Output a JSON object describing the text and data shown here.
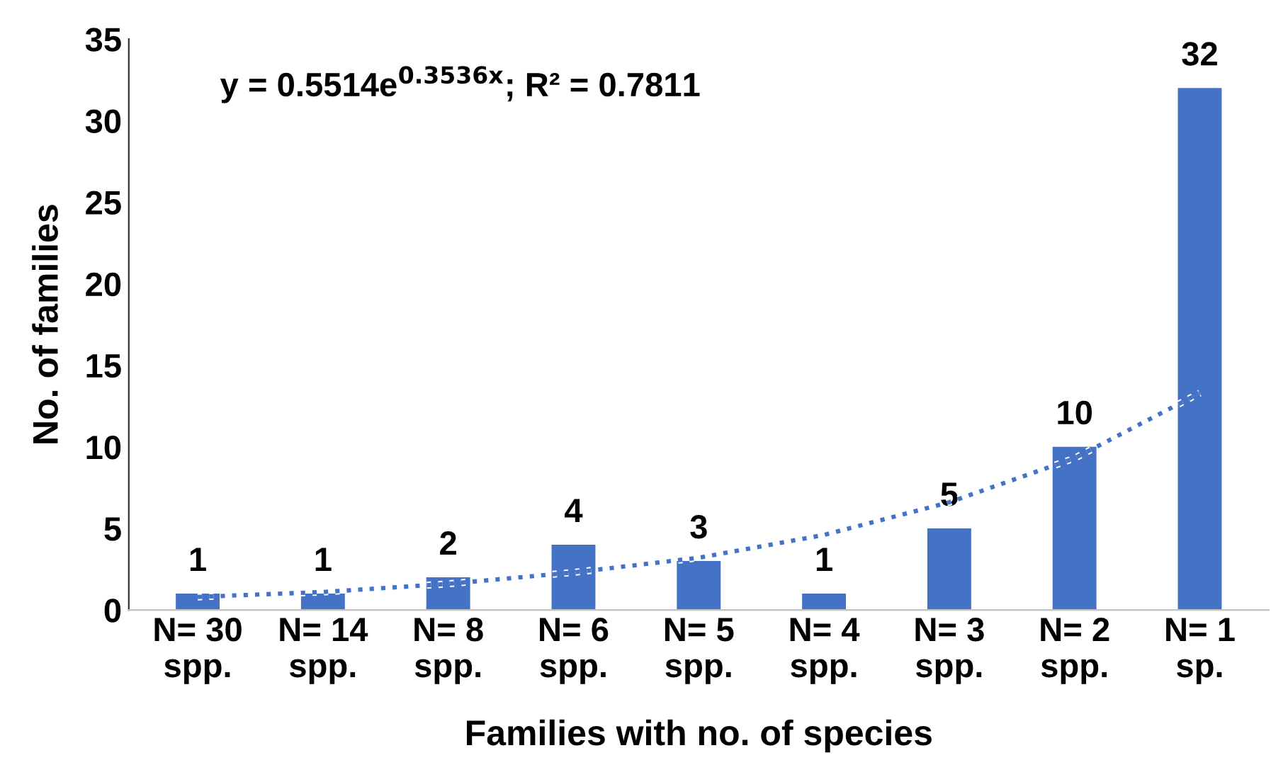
{
  "chart_data": {
    "type": "bar",
    "xlabel": "Families with no. of species",
    "ylabel": "No. of families",
    "categories": [
      "N= 30\nspp.",
      "N= 14\nspp.",
      "N= 8\nspp.",
      "N= 6\nspp.",
      "N= 5\nspp.",
      "N= 4\nspp.",
      "N= 3\nspp.",
      "N= 2\nspp.",
      "N= 1\nsp."
    ],
    "series": [
      {
        "color": "#4472c4",
        "values": [
          1,
          1,
          2,
          4,
          3,
          1,
          5,
          10,
          32
        ],
        "value_labels": [
          "1",
          "1",
          "2",
          "4",
          "3",
          "1",
          "5",
          "10",
          "32"
        ]
      },
      {
        "type": "line",
        "color": "#4472c4",
        "line_style": "dotted",
        "x": [
          "N= 30\nspp.",
          "N= 14\nspp.",
          "N= 8\nspp.",
          "N= 6\nspp.",
          "N= 5\nspp.",
          "N= 4\nspp.",
          "N= 3\nspp.",
          "N= 2\nspp.",
          "N= 1\nsp."
        ],
        "values": [
          0.8,
          1.1,
          1.6,
          2.3,
          3.2,
          4.6,
          6.6,
          9.3,
          13.3
        ]
      }
    ],
    "annotations": [
      "y = 0.5514e$^{0.3536x}$; R² = 0.7811"
    ],
    "ylim": [
      0,
      35
    ],
    "yticks": [
      0,
      5,
      10,
      15,
      20,
      25,
      30,
      35
    ],
    "grid": false,
    "legend": false
  }
}
